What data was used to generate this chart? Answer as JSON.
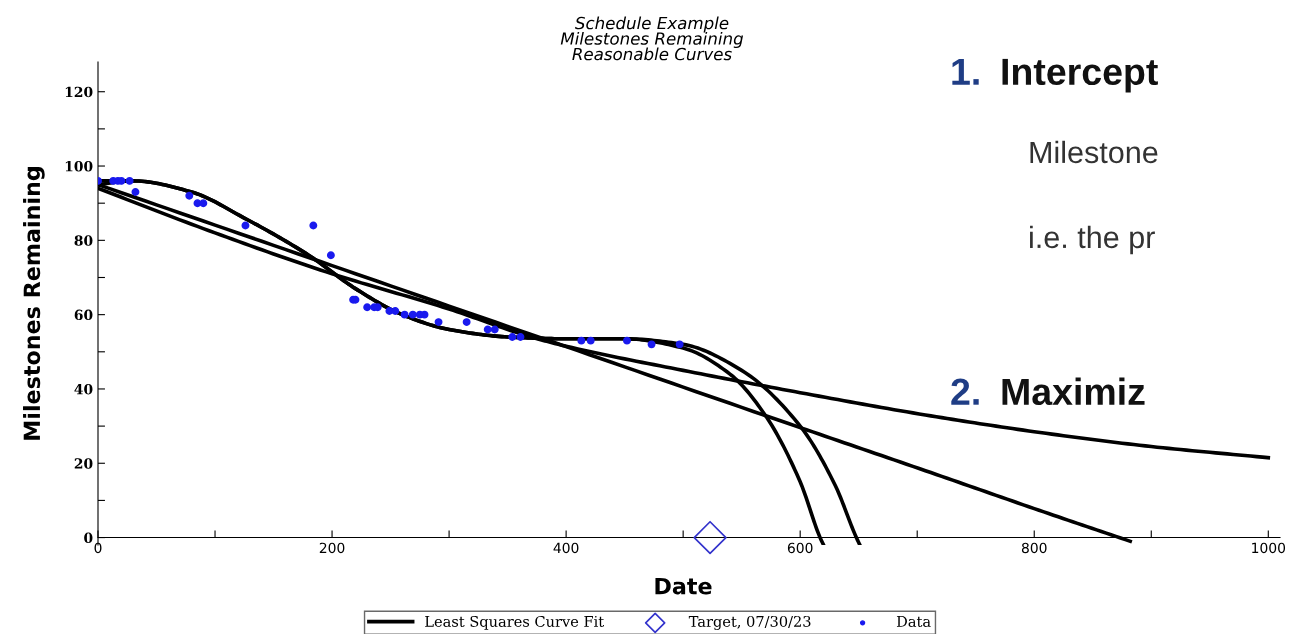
{
  "chart_data": {
    "type": "line",
    "title": "Schedule Example\nMilestones Remaining\nReasonable Curves",
    "xlabel": "Date",
    "ylabel": "Milestones Remaining",
    "xlim": [
      0,
      1010
    ],
    "ylim": [
      -2,
      128
    ],
    "xticks": [
      0,
      {
        "value": 100,
        "label": null
      },
      200,
      {
        "value": 300,
        "label": null
      },
      400,
      {
        "value": 500,
        "label": null
      },
      600,
      {
        "value": 700,
        "label": null
      },
      800,
      {
        "value": 900,
        "label": null
      },
      1000
    ],
    "yticks": [
      0,
      {
        "value": 10,
        "label": null
      },
      20,
      {
        "value": 30,
        "label": null
      },
      40,
      {
        "value": 50,
        "label": null
      },
      60,
      {
        "value": 70,
        "label": null
      },
      80,
      {
        "value": 90,
        "label": null
      },
      100,
      {
        "value": 110,
        "label": null
      },
      120
    ],
    "grid": false,
    "legend": "bottom",
    "series": [
      {
        "name": "Least Squares Curve Fit",
        "color": "#000000",
        "x": [
          0,
          200,
          400,
          600,
          707,
          800,
          882
        ],
        "values": [
          95,
          73.2,
          51.4,
          29.6,
          18,
          7.8,
          -1
        ]
      },
      {
        "color": "#000000",
        "x": [
          0,
          100,
          200,
          300,
          370,
          400,
          500,
          600,
          707,
          800,
          900,
          1000
        ],
        "values": [
          94,
          82,
          71,
          61.5,
          54,
          51.5,
          45,
          39,
          33,
          28.5,
          24.5,
          21.5
        ]
      },
      {
        "color": "#000000",
        "x": [
          0,
          30,
          80,
          125,
          180,
          220,
          260,
          300,
          350,
          400,
          450,
          500,
          540,
          570,
          600,
          617,
          620
        ],
        "values": [
          96,
          96,
          93,
          86,
          76,
          67,
          60,
          56,
          54,
          53.5,
          53.5,
          51,
          44,
          33,
          15,
          0,
          -2
        ]
      },
      {
        "color": "#000000",
        "x": [
          0,
          30,
          80,
          125,
          180,
          220,
          260,
          300,
          350,
          400,
          450,
          500,
          550,
          600,
          630,
          648,
          651
        ],
        "values": [
          95,
          96,
          93,
          86,
          76,
          67,
          60,
          56,
          54,
          53.5,
          53.5,
          52,
          45,
          30,
          14,
          0,
          -2
        ]
      },
      {
        "name": "Target, 07/30/23",
        "type": "scatter",
        "marker": "diamond",
        "color": "#3333cc",
        "x": [
          523
        ],
        "values": [
          0
        ]
      },
      {
        "name": "Data",
        "type": "scatter",
        "marker": "circle",
        "color": "#1a1aee",
        "x": [
          0,
          13,
          17,
          20,
          27,
          32,
          78,
          85,
          90,
          126,
          184,
          199,
          218,
          220,
          230,
          236,
          239,
          249,
          254,
          262,
          269,
          275,
          279,
          291,
          315,
          333,
          339,
          354,
          361,
          413,
          421,
          452,
          473,
          497
        ],
        "values": [
          96,
          96,
          96,
          96,
          96,
          93,
          92,
          90,
          90,
          84,
          84,
          76,
          64,
          64,
          62,
          62,
          62,
          61,
          61,
          60,
          60,
          60,
          60,
          58,
          58,
          56,
          56,
          54,
          54,
          53,
          53,
          53,
          52,
          52
        ]
      }
    ],
    "annotations": [
      "1.",
      "Intercept",
      "Milestone",
      "i.e. the pr",
      "2.",
      "Maximiz"
    ]
  }
}
